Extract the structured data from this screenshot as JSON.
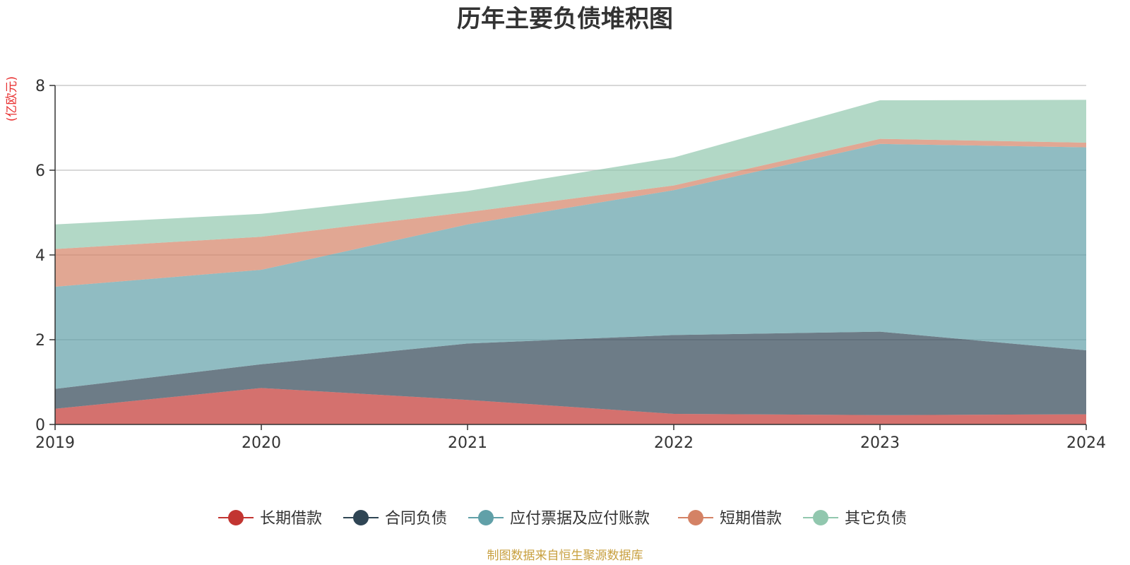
{
  "chart_data": {
    "type": "area",
    "stacked": true,
    "title": "历年主要负债堆积图",
    "unit_label": "(亿欧元)",
    "x": [
      "2019",
      "2020",
      "2021",
      "2022",
      "2023",
      "2024"
    ],
    "ylim": [
      0,
      8
    ],
    "yticks": [
      "0",
      "2",
      "4",
      "6",
      "8"
    ],
    "grid": true,
    "legend_position": "bottom",
    "series": [
      {
        "name": "长期借款",
        "color": "#c23531",
        "values": [
          0.37,
          0.86,
          0.58,
          0.25,
          0.22,
          0.24
        ]
      },
      {
        "name": "合同负债",
        "color": "#2f4554",
        "values": [
          0.47,
          0.56,
          1.33,
          1.86,
          1.97,
          1.51
        ]
      },
      {
        "name": "应付票据及应付账款",
        "color": "#61a0a8",
        "values": [
          2.41,
          2.23,
          2.81,
          3.42,
          4.43,
          4.79
        ]
      },
      {
        "name": "短期借款",
        "color": "#d48265",
        "values": [
          0.89,
          0.78,
          0.29,
          0.11,
          0.12,
          0.11
        ]
      },
      {
        "name": "其它负债",
        "color": "#91c7ae",
        "values": [
          0.58,
          0.54,
          0.5,
          0.66,
          0.91,
          1.01
        ]
      }
    ],
    "source_note": "制图数据来自恒生聚源数据库"
  }
}
